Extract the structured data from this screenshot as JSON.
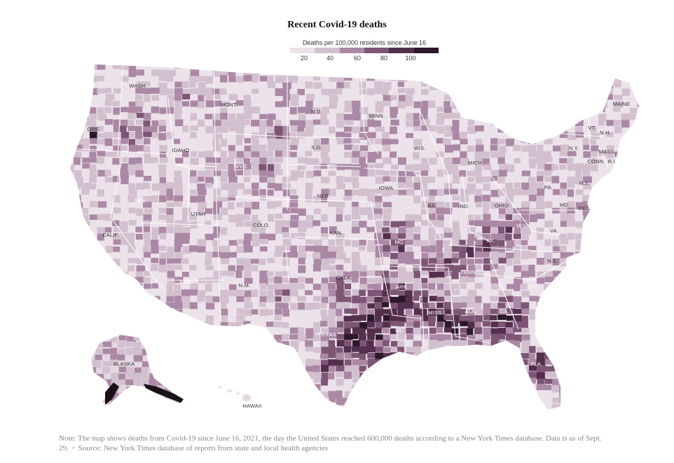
{
  "title": "Recent Covid-19 deaths",
  "legend": {
    "label": "Deaths per 100,000 residents since June 16",
    "ticks": [
      "20",
      "40",
      "60",
      "80",
      "100"
    ],
    "colors": [
      "#ece3ea",
      "#d2c0cf",
      "#ab88a5",
      "#7d5575",
      "#532f4d",
      "#2b1828"
    ]
  },
  "state_labels": [
    "WASH.",
    "MONT.",
    "N.D.",
    "MINN.",
    "MAINE",
    "ORE.",
    "IDAHO",
    "WYO.",
    "S.D.",
    "WIS.",
    "MICH.",
    "VT.",
    "N.H.",
    "N.Y.",
    "MASS.",
    "CONN.",
    "R.I.",
    "NEB.",
    "IOWA",
    "PA.",
    "N.J.",
    "NEV.",
    "UTAH",
    "COLO.",
    "ILL.",
    "IND.",
    "OHIO",
    "MD.",
    "DEL.",
    "CALIF.",
    "KAN.",
    "MO.",
    "W.VA.",
    "VA.",
    "KY.",
    "N.C.",
    "TENN.",
    "ARIZ.",
    "N.M.",
    "OKLA.",
    "ARK.",
    "S.C.",
    "MISS.",
    "ALA.",
    "GA.",
    "TEXAS",
    "LA.",
    "FLA.",
    "ALASKA",
    "HAWAII"
  ],
  "note": "Note: The map shows deaths from Covid-19 since June 16, 2021, the day the United States reached 600,000 deaths according to a New York Times database. Data is as of Sept. 29.",
  "source": "Source: New York Times database of reports from state and local health agencies"
}
